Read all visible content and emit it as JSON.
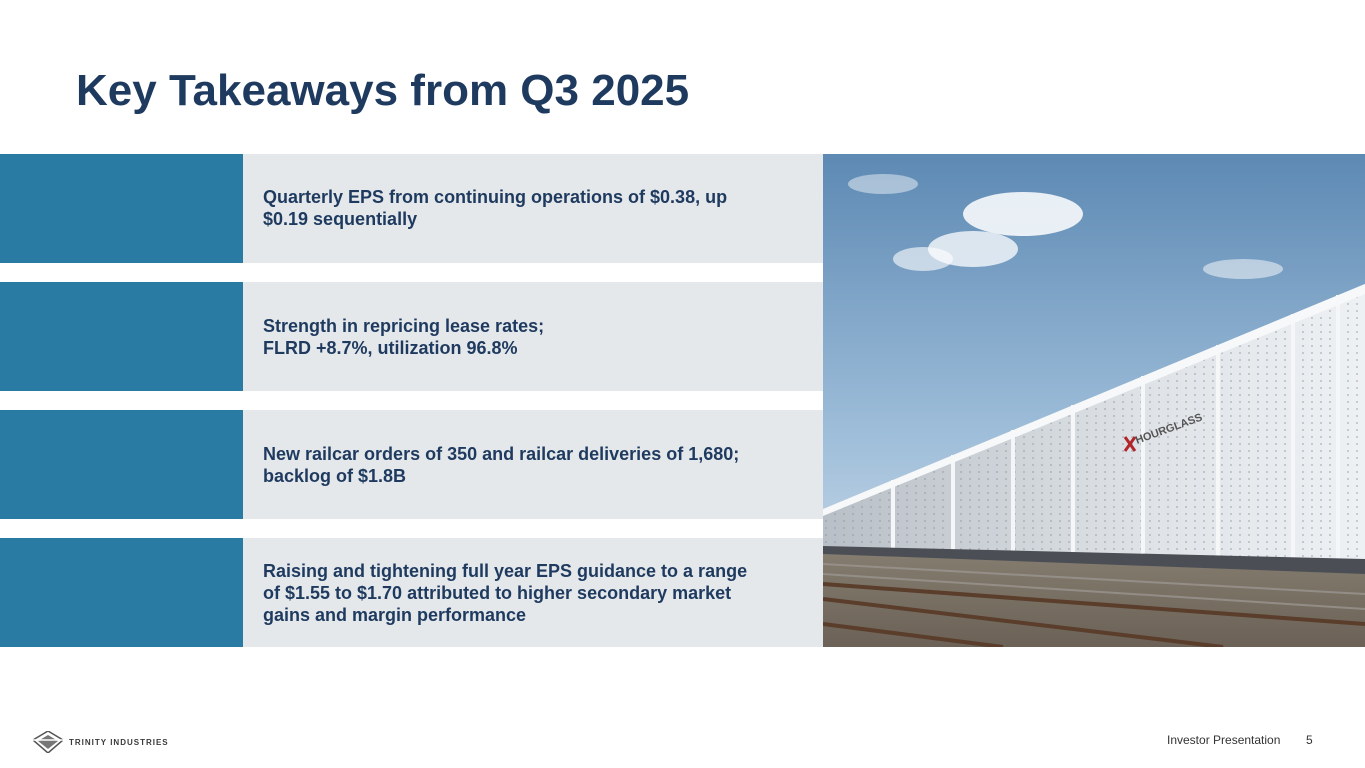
{
  "slide": {
    "title": "Key Takeaways from Q3 2025"
  },
  "takeaways": [
    {
      "text": "Quarterly EPS from continuing operations of $0.38, up\n$0.19 sequentially"
    },
    {
      "text": "Strength in repricing lease rates;\nFLRD +8.7%, utilization 96.8%"
    },
    {
      "text": "New railcar orders of 350 and railcar deliveries of 1,680;\nbacklog of $1.8B"
    },
    {
      "text": "Raising and tightening full year EPS guidance to a range\nof $1.55 to $1.70 attributed to higher secondary market\ngains and margin performance"
    }
  ],
  "photo": {
    "railcar_brand": "HOURGLASS"
  },
  "footer": {
    "logo_text": "TRINITY INDUSTRIES",
    "label": "Investor Presentation",
    "page_number": "5"
  },
  "colors": {
    "title": "#1f3a5f",
    "accent_bar": "#2a7ba3",
    "panel": "#e4e8eb"
  }
}
